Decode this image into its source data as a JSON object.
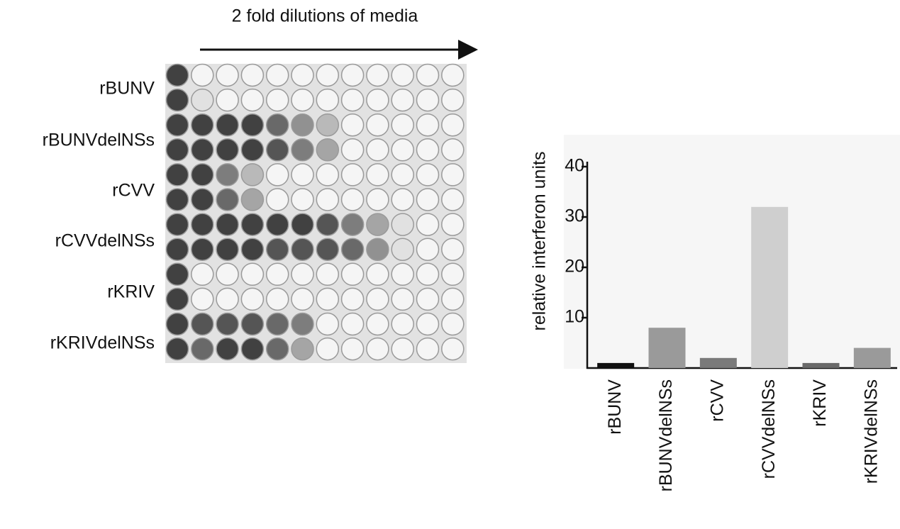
{
  "plate": {
    "title": "2 fold dilutions of media",
    "row_labels": [
      "rBUNV",
      "rBUNVdelNSs",
      "rCVV",
      "rCVVdelNSs",
      "rKRIV",
      "rKRIVdelNSs"
    ]
  },
  "chart_data": {
    "type": "bar",
    "y_label": "relative interferon units",
    "categories": [
      "rBUNV",
      "rBUNVdelNSs",
      "rCVV",
      "rCVVdelNSs",
      "rKRIV",
      "rKRIVdelNSs"
    ],
    "values": [
      1,
      8,
      2,
      32,
      1,
      4
    ],
    "colors": [
      "#111111",
      "#9a9a9a",
      "#7a7a7a",
      "#cfcfcf",
      "#6a6a6a",
      "#9a9a9a"
    ],
    "ylim": [
      0,
      40
    ],
    "yticks": [
      10,
      20,
      30,
      40
    ]
  }
}
